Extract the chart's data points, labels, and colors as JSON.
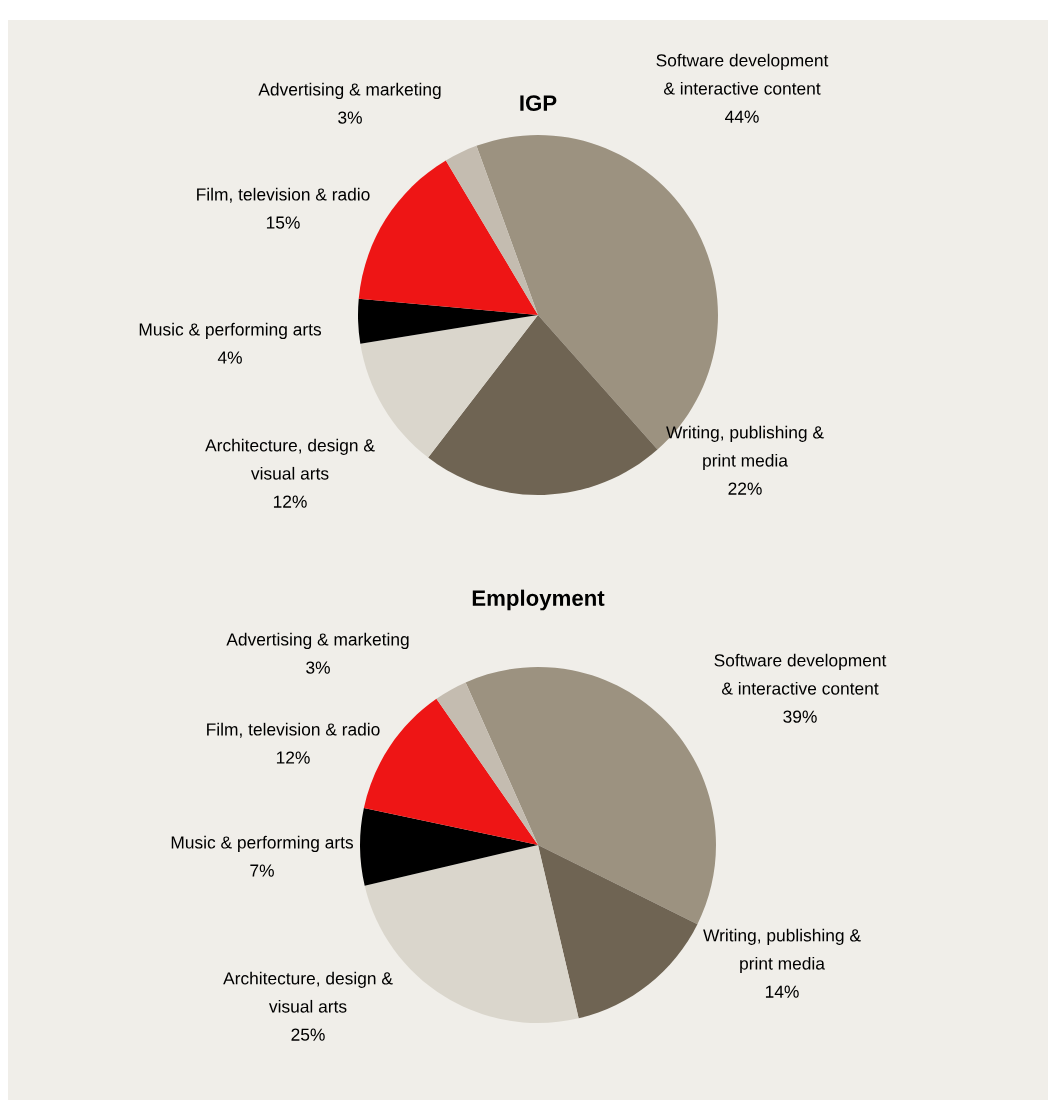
{
  "chart_data": [
    {
      "type": "pie",
      "title": "IGP",
      "categories": [
        "Software development\n& interactive content",
        "Writing, publishing &\nprint media",
        "Architecture, design &\nvisual arts",
        "Music & performing arts",
        "Film, television & radio",
        "Advertising & marketing"
      ],
      "values": [
        44,
        22,
        12,
        4,
        15,
        3
      ],
      "value_labels": [
        "44%",
        "22%",
        "12%",
        "4%",
        "15%",
        "3%"
      ],
      "colors": [
        "#9c9280",
        "#6f6453",
        "#dad6cc",
        "#000000",
        "#ee1515",
        "#c4bcb0"
      ]
    },
    {
      "type": "pie",
      "title": "Employment",
      "categories": [
        "Software development\n& interactive content",
        "Writing, publishing &\nprint media",
        "Architecture, design &\nvisual arts",
        "Music & performing arts",
        "Film, television & radio",
        "Advertising & marketing"
      ],
      "values": [
        39,
        14,
        25,
        7,
        12,
        3
      ],
      "value_labels": [
        "39%",
        "14%",
        "25%",
        "7%",
        "12%",
        "3%"
      ],
      "colors": [
        "#9c9280",
        "#6f6453",
        "#dad6cc",
        "#000000",
        "#ee1515",
        "#c4bcb0"
      ]
    }
  ]
}
